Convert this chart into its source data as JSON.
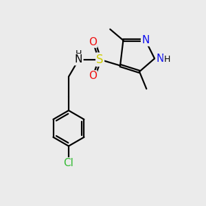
{
  "bg_color": "#ebebeb",
  "bond_color": "#000000",
  "bond_width": 1.6,
  "dbo": 0.055,
  "atom_colors": {
    "N": "#1010ee",
    "NH": "#1010ee",
    "O": "#ee1010",
    "S": "#cccc00",
    "Cl": "#33bb33",
    "C": "#000000",
    "H": "#000000"
  },
  "font_size": 10,
  "figsize": [
    3.0,
    3.0
  ],
  "dpi": 100
}
